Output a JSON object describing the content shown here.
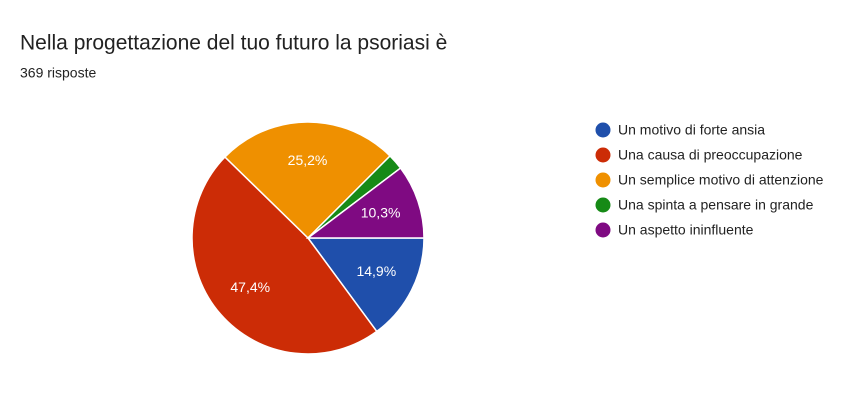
{
  "chart_data": {
    "type": "pie",
    "title": "Nella progettazione del tuo futuro la psoriasi è",
    "subtitle": "369 risposte",
    "categories": [
      "Un motivo di forte ansia",
      "Una causa di preoccupazione",
      "Un semplice motivo di attenzione",
      "Una spinta a pensare in grande",
      "Un aspetto ininfluente"
    ],
    "values": [
      14.9,
      47.4,
      25.2,
      2.2,
      10.3
    ],
    "value_labels": [
      "14,9%",
      "47,4%",
      "25,2%",
      null,
      "10,3%"
    ],
    "colors": [
      "#1f4fab",
      "#cc2c06",
      "#ef9000",
      "#168a16",
      "#7f0a82"
    ],
    "legend": "right"
  }
}
